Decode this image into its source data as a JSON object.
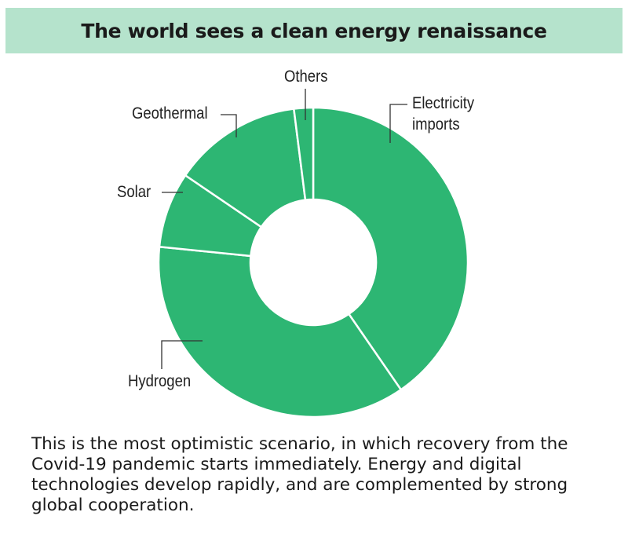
{
  "chart_data": {
    "type": "pie",
    "donut": true,
    "title": "The world sees a clean energy renaissance",
    "categories": [
      "Electricity imports",
      "Hydrogen",
      "Solar",
      "Geothermal",
      "Others"
    ],
    "values": [
      40.4,
      36.2,
      7.9,
      13.5,
      2.0
    ],
    "color": "#2db673",
    "caption": "This is the most optimistic scenario, in which recovery from the Covid-19 pandemic starts immediately. Energy and digital technologies develop rapidly, and are complemented by strong global cooperation."
  },
  "labels": {
    "electricity_1": "Electricity",
    "electricity_2": "imports"
  },
  "colors": {
    "header_bg": "#b5e3cc",
    "slice": "#2db673"
  }
}
